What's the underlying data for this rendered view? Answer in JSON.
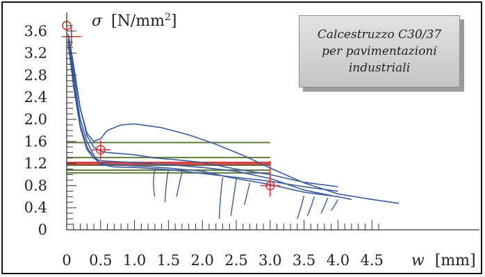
{
  "chart_data": {
    "type": "line",
    "title": "",
    "xlabel_symbol": "w",
    "xlabel_unit": "[mm]",
    "ylabel_symbol": "σ",
    "ylabel_unit": "[N/mm",
    "ylabel_unit_exp": "2",
    "ylabel_unit_close": "]",
    "annotation": "Calcestruzzo C30/37\nper pavimentazioni\nindustriali",
    "xlim": [
      0,
      4.9
    ],
    "ylim": [
      0,
      3.8
    ],
    "x_ticks": [
      "0",
      "0.5",
      "1.0",
      "1.5",
      "2.0",
      "2.5",
      "3.0",
      "3.5",
      "4.0",
      "4.5"
    ],
    "y_ticks": [
      "0",
      "0.4",
      "0.8",
      "1.2",
      "1.6",
      "2.0",
      "2.4",
      "2.8",
      "3.2",
      "3.6"
    ],
    "grid": false,
    "colors": {
      "curves": "#3a5a9c",
      "green_levels": "#5f7a3a",
      "red_marks": "#d13a3a",
      "axes": "#333333"
    },
    "green_levels": [
      1.58,
      1.31,
      1.17,
      1.08,
      1.03
    ],
    "green_level_xmax": 3.0,
    "red_levels": [
      1.22,
      1.19
    ],
    "red_level_xmax": 3.0,
    "red_points": [
      {
        "x": 0.0,
        "y": 3.7,
        "style": "circle"
      },
      {
        "x": 0.07,
        "y": 3.5,
        "style": "cross"
      },
      {
        "x": 0.5,
        "y": 1.45,
        "style": "circle-cross"
      },
      {
        "x": 3.0,
        "y": 0.8,
        "style": "circle-cross"
      }
    ],
    "series": [
      {
        "x": [
          0.02,
          0.05,
          0.1,
          0.2,
          0.3,
          0.4,
          0.5,
          0.7,
          1.0,
          1.5,
          2.0,
          2.5,
          3.0,
          3.5,
          4.0
        ],
        "y": [
          3.55,
          3.3,
          2.8,
          2.0,
          1.6,
          1.35,
          1.18,
          1.14,
          1.13,
          1.09,
          1.02,
          0.95,
          0.88,
          0.78,
          0.7
        ]
      },
      {
        "x": [
          0.02,
          0.05,
          0.1,
          0.2,
          0.3,
          0.4,
          0.5,
          0.6,
          0.8,
          1.0,
          1.3,
          1.6,
          2.0,
          2.5,
          3.0,
          3.5,
          4.0
        ],
        "y": [
          3.45,
          3.3,
          2.9,
          2.2,
          1.7,
          1.5,
          1.42,
          1.4,
          1.38,
          1.36,
          1.3,
          1.27,
          1.22,
          1.1,
          1.0,
          0.86,
          0.78
        ]
      },
      {
        "x": [
          0.03,
          0.1,
          0.2,
          0.3,
          0.4,
          0.5,
          0.6,
          0.8,
          1.0,
          1.4,
          1.8,
          2.2,
          2.6,
          3.0,
          3.5,
          4.0,
          4.5,
          4.9
        ],
        "y": [
          3.5,
          3.0,
          2.2,
          1.75,
          1.6,
          1.65,
          1.8,
          1.9,
          1.92,
          1.85,
          1.72,
          1.55,
          1.35,
          1.12,
          0.85,
          0.65,
          0.55,
          0.48
        ]
      },
      {
        "x": [
          0.02,
          0.05,
          0.1,
          0.2,
          0.3,
          0.4,
          0.5,
          0.7,
          1.0,
          1.5,
          2.0,
          2.4,
          3.0,
          3.5,
          4.0,
          4.2
        ],
        "y": [
          3.4,
          3.2,
          2.7,
          1.9,
          1.5,
          1.3,
          1.2,
          1.18,
          1.16,
          1.12,
          1.06,
          0.95,
          0.82,
          0.68,
          0.6,
          0.55
        ]
      },
      {
        "x": [
          0.02,
          0.05,
          0.1,
          0.2,
          0.3,
          0.4,
          0.5,
          0.8,
          1.2,
          1.6,
          2.0,
          2.5,
          3.0,
          3.5,
          3.9
        ],
        "y": [
          3.35,
          3.1,
          2.6,
          1.85,
          1.45,
          1.3,
          1.25,
          1.23,
          1.2,
          1.17,
          1.13,
          1.06,
          0.93,
          0.72,
          0.62
        ]
      }
    ],
    "unloading_branches": [
      {
        "x_top": 1.3,
        "y_top": 1.1,
        "x_bottom": 1.3,
        "y_bottom": 0.6
      },
      {
        "x_top": 1.5,
        "y_top": 1.1,
        "x_bottom": 1.45,
        "y_bottom": 0.5
      },
      {
        "x_top": 1.7,
        "y_top": 1.05,
        "x_bottom": 1.62,
        "y_bottom": 0.6
      },
      {
        "x_top": 2.3,
        "y_top": 0.95,
        "x_bottom": 2.25,
        "y_bottom": 0.2
      },
      {
        "x_top": 2.5,
        "y_top": 0.92,
        "x_bottom": 2.42,
        "y_bottom": 0.25
      },
      {
        "x_top": 2.7,
        "y_top": 0.85,
        "x_bottom": 2.62,
        "y_bottom": 0.45
      },
      {
        "x_top": 3.5,
        "y_top": 0.62,
        "x_bottom": 3.4,
        "y_bottom": 0.2
      },
      {
        "x_top": 3.65,
        "y_top": 0.6,
        "x_bottom": 3.55,
        "y_bottom": 0.25
      },
      {
        "x_top": 3.85,
        "y_top": 0.58,
        "x_bottom": 3.75,
        "y_bottom": 0.3
      },
      {
        "x_top": 4.0,
        "y_top": 0.55,
        "x_bottom": 3.9,
        "y_bottom": 0.35
      }
    ]
  }
}
